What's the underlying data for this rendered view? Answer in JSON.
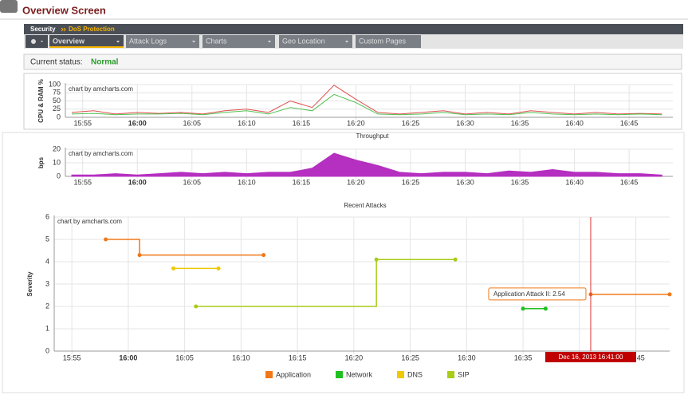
{
  "header": {
    "title": "Overview Screen"
  },
  "breadcrumb": [
    "Security",
    "DoS Protection"
  ],
  "tabs": [
    "Overview",
    "Attack Logs",
    "Charts",
    "Geo Location",
    "Custom Pages"
  ],
  "status": {
    "label": "Current status:",
    "value": "Normal"
  },
  "chart_data": [
    {
      "type": "line",
      "ylabel": "CPU & RAM %",
      "note": "chart by amcharts.com",
      "x": [
        "15:54",
        "15:56",
        "15:58",
        "16:00",
        "16:02",
        "16:04",
        "16:06",
        "16:08",
        "16:10",
        "16:12",
        "16:14",
        "16:16",
        "16:18",
        "16:20",
        "16:22",
        "16:24",
        "16:26",
        "16:28",
        "16:30",
        "16:32",
        "16:34",
        "16:36",
        "16:38",
        "16:40",
        "16:42",
        "16:44",
        "16:46",
        "16:48"
      ],
      "xlim": [
        "15:54",
        "16:49"
      ],
      "xticks": [
        "15:55",
        "16:00",
        "16:05",
        "16:10",
        "16:15",
        "16:20",
        "16:25",
        "16:30",
        "16:35",
        "16:40",
        "16:45"
      ],
      "ylim": [
        0,
        100
      ],
      "yticks": [
        0,
        25,
        50,
        75,
        100
      ],
      "grid": true,
      "series": [
        {
          "color": "#e05050",
          "values": [
            15,
            20,
            10,
            15,
            12,
            15,
            10,
            20,
            25,
            15,
            50,
            30,
            98,
            55,
            15,
            10,
            15,
            20,
            10,
            15,
            10,
            20,
            15,
            10,
            15,
            10,
            12,
            10
          ]
        },
        {
          "color": "#50c050",
          "values": [
            10,
            12,
            8,
            10,
            10,
            12,
            8,
            15,
            20,
            10,
            30,
            20,
            70,
            45,
            10,
            8,
            10,
            15,
            8,
            10,
            8,
            15,
            10,
            8,
            10,
            8,
            10,
            8
          ]
        }
      ]
    },
    {
      "type": "area",
      "title": "Throughput",
      "ylabel": "bps",
      "note": "chart by amcharts.com",
      "x": [
        "15:54",
        "15:56",
        "15:58",
        "16:00",
        "16:02",
        "16:04",
        "16:06",
        "16:08",
        "16:10",
        "16:12",
        "16:14",
        "16:16",
        "16:18",
        "16:20",
        "16:22",
        "16:24",
        "16:26",
        "16:28",
        "16:30",
        "16:32",
        "16:34",
        "16:36",
        "16:38",
        "16:40",
        "16:42",
        "16:44",
        "16:46",
        "16:48"
      ],
      "xlim": [
        "15:54",
        "16:49"
      ],
      "xticks": [
        "15:55",
        "16:00",
        "16:05",
        "16:10",
        "16:15",
        "16:20",
        "16:25",
        "16:30",
        "16:35",
        "16:40",
        "16:45"
      ],
      "ylim": [
        0,
        20
      ],
      "yticks": [
        0,
        10,
        20
      ],
      "grid": true,
      "series": [
        {
          "color": "#b52fc0",
          "values": [
            1,
            1,
            2,
            1,
            2,
            3,
            2,
            3,
            2,
            3,
            3,
            6,
            17,
            12,
            8,
            3,
            2,
            3,
            3,
            2,
            4,
            3,
            5,
            3,
            3,
            2,
            2,
            1
          ]
        }
      ]
    },
    {
      "type": "step",
      "title": "Recent Attacks",
      "ylabel": "Severity",
      "note": "chart by amcharts.com",
      "xlim": [
        "15:54",
        "16:48"
      ],
      "xticks": [
        "15:55",
        "16:00",
        "16:05",
        "16:10",
        "16:15",
        "16:20",
        "16:25",
        "16:30",
        "16:35",
        "16:40",
        "16:45"
      ],
      "ylim": [
        0,
        6
      ],
      "yticks": [
        0,
        1,
        2,
        3,
        4,
        5,
        6
      ],
      "grid": true,
      "legend": "bottom",
      "series": [
        {
          "name": "Application",
          "color": "#f07818",
          "x": [
            "15:58",
            "16:01",
            "16:12",
            null,
            "16:41",
            "16:48"
          ],
          "values": [
            5,
            4.3,
            4.3,
            null,
            2.54,
            2.54
          ]
        },
        {
          "name": "Network",
          "color": "#20c020",
          "x": [
            "16:35",
            "16:37"
          ],
          "values": [
            1.9,
            1.9
          ]
        },
        {
          "name": "DNS",
          "color": "#f0c800",
          "x": [
            "16:04",
            "16:08"
          ],
          "values": [
            3.7,
            3.7
          ]
        },
        {
          "name": "SIP",
          "color": "#a8cc18",
          "x": [
            "16:06",
            "16:22",
            "16:29"
          ],
          "values": [
            2,
            4.1,
            4.1
          ]
        }
      ],
      "tooltip": "Application Attack II: 2.54",
      "cursor": {
        "x": "16:41",
        "label": "Dec 16, 2013 16:41:00"
      }
    }
  ]
}
